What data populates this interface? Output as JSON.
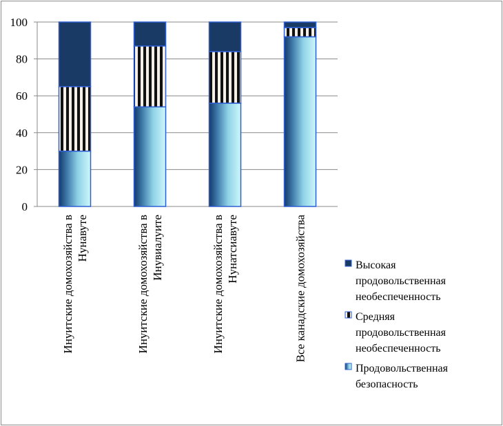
{
  "chart_data": {
    "type": "bar",
    "stacked": true,
    "categories": [
      [
        "Инуитские домохозяйства в",
        "Нунавуте"
      ],
      [
        "Инуитские домохозяйства в",
        "Инувиалуите"
      ],
      [
        "Инуитские домохозяйства в",
        "Нунатсиавуте"
      ],
      [
        "Все  канадские домохозяйства"
      ]
    ],
    "series": [
      {
        "name": "Продовольственная безопасность",
        "values": [
          30,
          54,
          56,
          92
        ],
        "fill": "gradient-blue"
      },
      {
        "name": "Средняя продовольственная необеспеченность",
        "values": [
          35,
          33,
          28,
          5
        ],
        "fill": "stripes"
      },
      {
        "name": "Высокая продовольственная необеспеченность",
        "values": [
          35,
          13,
          16,
          3
        ],
        "fill": "#1a3a66"
      }
    ],
    "legend_lines": [
      [
        "Высокая",
        "продовольственная",
        "необеспеченность"
      ],
      [
        "Средняя",
        "продовольственная",
        "необеспеченность"
      ],
      [
        "Продовольственная",
        "безопасность"
      ]
    ],
    "ylim": [
      0,
      100
    ],
    "yticks": [
      0,
      20,
      40,
      60,
      80,
      100
    ],
    "grid": true,
    "legend_position": "right-bottom",
    "colors": {
      "dark": "#1a3a66",
      "light": "#b8f0f8",
      "border": "#2e5fd4",
      "grid": "#888888"
    }
  }
}
